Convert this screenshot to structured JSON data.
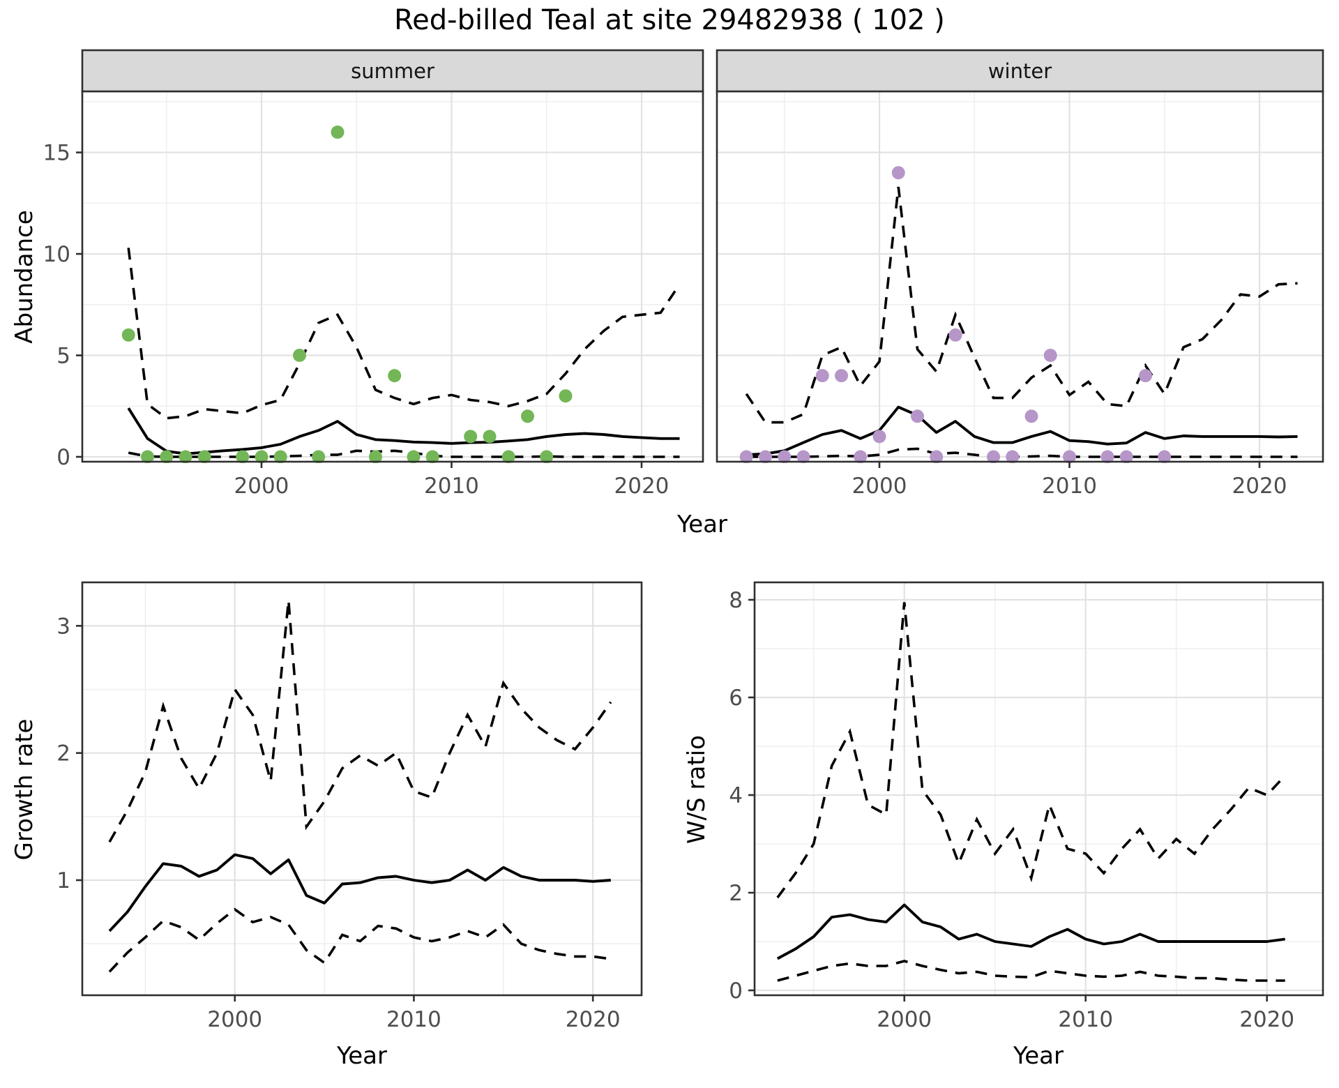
{
  "title": "Red-billed Teal at site 29482938 ( 102 )",
  "facets": {
    "summer": "summer",
    "winter": "winter"
  },
  "axis_labels": {
    "abundance": "Abundance",
    "year_top": "Year",
    "growth_rate": "Growth rate",
    "ws_ratio": "W/S ratio",
    "year_bottom_left": "Year",
    "year_bottom_right": "Year"
  },
  "colors": {
    "summer_points": "#73b657",
    "winter_points": "#b696c9",
    "line": "#000000",
    "strip_bg": "#d9d9d9",
    "panel_border": "#2f2f2f",
    "grid_major": "#e2e2e2",
    "grid_minor": "#efefef",
    "tick_text": "#4d4d4d"
  },
  "chart_data": {
    "type": "line",
    "title": "Red-billed Teal at site 29482938 ( 102 )",
    "legend": "none",
    "panels": [
      {
        "id": "summer",
        "facet_label": "summer",
        "ylabel": "Abundance",
        "xlim": [
          1990.57,
          2023.23
        ],
        "ylim": [
          -0.24,
          18.01
        ],
        "x_major": [
          2000,
          2010,
          2020
        ],
        "x_minor": [
          1995,
          2005,
          2015
        ],
        "x_tick_labels": [
          "2000",
          "2010",
          "2020"
        ],
        "y_major": [
          0,
          5,
          10,
          15
        ],
        "y_minor": [
          2.5,
          7.5,
          12.5,
          17.5
        ],
        "y_tick_labels": [
          "0",
          "5",
          "10",
          "15"
        ],
        "point_color": "#73b657",
        "points": {
          "years": [
            1993,
            1994,
            1995,
            1996,
            1997,
            1999,
            2000,
            2001,
            2002,
            2003,
            2004,
            2006,
            2007,
            2008,
            2009,
            2011,
            2012,
            2013,
            2014,
            2015,
            2016
          ],
          "values": [
            6,
            0,
            0,
            0,
            0,
            0,
            0,
            0,
            5,
            0,
            16,
            0,
            4,
            0,
            0,
            1,
            1,
            0,
            2,
            0,
            3
          ]
        },
        "median": {
          "years": [
            1993,
            1994,
            1995,
            1996,
            1997,
            1998,
            1999,
            2000,
            2001,
            2002,
            2003,
            2004,
            2005,
            2006,
            2007,
            2008,
            2009,
            2010,
            2011,
            2012,
            2013,
            2014,
            2015,
            2016,
            2017,
            2018,
            2019,
            2020,
            2021,
            2022
          ],
          "values": [
            2.4,
            0.9,
            0.28,
            0.15,
            0.22,
            0.3,
            0.36,
            0.45,
            0.62,
            1.0,
            1.3,
            1.75,
            1.1,
            0.85,
            0.8,
            0.73,
            0.7,
            0.66,
            0.7,
            0.72,
            0.78,
            0.85,
            1.0,
            1.1,
            1.15,
            1.1,
            1.0,
            0.95,
            0.9,
            0.9
          ]
        },
        "upper": {
          "years": [
            1993,
            1994,
            1995,
            1996,
            1997,
            1998,
            1999,
            2000,
            2001,
            2002,
            2003,
            2004,
            2005,
            2006,
            2007,
            2008,
            2009,
            2010,
            2011,
            2012,
            2013,
            2014,
            2015,
            2016,
            2017,
            2018,
            2019,
            2020,
            2021,
            2022
          ],
          "values": [
            10.3,
            2.6,
            1.9,
            2.0,
            2.35,
            2.25,
            2.15,
            2.55,
            2.8,
            4.6,
            6.6,
            7.0,
            5.4,
            3.3,
            2.9,
            2.6,
            2.9,
            3.05,
            2.8,
            2.7,
            2.5,
            2.75,
            3.1,
            4.1,
            5.3,
            6.2,
            6.9,
            7.0,
            7.1,
            8.5
          ]
        },
        "lower": {
          "years": [
            1993,
            1994,
            1995,
            1996,
            1997,
            1998,
            1999,
            2000,
            2001,
            2002,
            2003,
            2004,
            2005,
            2006,
            2007,
            2008,
            2009,
            2010,
            2011,
            2012,
            2013,
            2014,
            2015,
            2016,
            2017,
            2018,
            2019,
            2020,
            2021,
            2022
          ],
          "values": [
            0.2,
            0.02,
            0,
            0,
            0,
            0,
            0,
            0,
            0.02,
            0.05,
            0.1,
            0.1,
            0.3,
            0.25,
            0.3,
            0.2,
            0.05,
            0,
            0,
            0,
            0,
            0,
            0.02,
            0,
            0,
            0,
            0,
            0,
            0,
            0
          ]
        }
      },
      {
        "id": "winter",
        "facet_label": "winter",
        "ylabel": "",
        "xlim": [
          1991.45,
          2023.34
        ],
        "ylim": [
          -0.24,
          18.01
        ],
        "x_major": [
          2000,
          2010,
          2020
        ],
        "x_minor": [
          1995,
          2005,
          2015
        ],
        "x_tick_labels": [
          "2000",
          "2010",
          "2020"
        ],
        "y_major": [
          0,
          5,
          10,
          15
        ],
        "y_minor": [
          2.5,
          7.5,
          12.5,
          17.5
        ],
        "y_tick_labels": [
          "0",
          "5",
          "10",
          "15"
        ],
        "point_color": "#b696c9",
        "points": {
          "years": [
            1993,
            1994,
            1995,
            1996,
            1997,
            1998,
            1999,
            2000,
            2001,
            2002,
            2003,
            2004,
            2006,
            2007,
            2008,
            2009,
            2010,
            2012,
            2013,
            2014,
            2015
          ],
          "values": [
            0,
            0,
            0,
            0,
            4,
            4,
            0,
            1,
            14,
            2,
            0,
            6,
            0,
            0,
            2,
            5,
            0,
            0,
            0,
            4,
            0
          ]
        },
        "median": {
          "years": [
            1993,
            1994,
            1995,
            1996,
            1997,
            1998,
            1999,
            2000,
            2001,
            2002,
            2003,
            2004,
            2005,
            2006,
            2007,
            2008,
            2009,
            2010,
            2011,
            2012,
            2013,
            2014,
            2015,
            2016,
            2017,
            2018,
            2019,
            2020,
            2021,
            2022
          ],
          "values": [
            0.1,
            0.15,
            0.3,
            0.7,
            1.1,
            1.3,
            0.9,
            1.3,
            2.45,
            2.05,
            1.2,
            1.75,
            1.0,
            0.7,
            0.7,
            1.0,
            1.25,
            0.8,
            0.75,
            0.63,
            0.68,
            1.2,
            0.9,
            1.03,
            1.0,
            1.0,
            1.0,
            1.0,
            0.98,
            1.0
          ]
        },
        "upper": {
          "years": [
            1993,
            1994,
            1995,
            1996,
            1997,
            1998,
            1999,
            2000,
            2001,
            2002,
            2003,
            2004,
            2005,
            2006,
            2007,
            2008,
            2009,
            2010,
            2011,
            2012,
            2013,
            2014,
            2015,
            2016,
            2017,
            2018,
            2019,
            2020,
            2021,
            2022
          ],
          "values": [
            3.1,
            1.7,
            1.7,
            2.1,
            5.0,
            5.4,
            3.5,
            4.7,
            13.3,
            5.3,
            4.2,
            7.0,
            4.9,
            2.9,
            2.9,
            3.9,
            4.5,
            3.05,
            3.7,
            2.6,
            2.5,
            4.5,
            3.1,
            5.4,
            5.8,
            6.75,
            8.0,
            7.9,
            8.5,
            8.55
          ]
        },
        "lower": {
          "years": [
            1993,
            1994,
            1995,
            1996,
            1997,
            1998,
            1999,
            2000,
            2001,
            2002,
            2003,
            2004,
            2005,
            2006,
            2007,
            2008,
            2009,
            2010,
            2011,
            2012,
            2013,
            2014,
            2015,
            2016,
            2017,
            2018,
            2019,
            2020,
            2021,
            2022
          ],
          "values": [
            0,
            0,
            0,
            0,
            0.02,
            0.05,
            0.02,
            0.1,
            0.35,
            0.4,
            0.15,
            0.2,
            0.1,
            0,
            0,
            0.02,
            0.05,
            0,
            0,
            0,
            0,
            0,
            0,
            0,
            0,
            0,
            0,
            0,
            0,
            0
          ]
        }
      },
      {
        "id": "growth",
        "facet_label": "",
        "ylabel": "Growth rate",
        "xlim": [
          1991.48,
          2022.72
        ],
        "ylim": [
          0.095,
          3.342
        ],
        "x_major": [
          2000,
          2010,
          2020
        ],
        "x_minor": [
          1995,
          2005,
          2015
        ],
        "x_tick_labels": [
          "2000",
          "2010",
          "2020"
        ],
        "y_major": [
          1,
          2,
          3
        ],
        "y_minor": [
          0.5,
          1.5,
          2.5
        ],
        "y_tick_labels": [
          "1",
          "2",
          "3"
        ],
        "median": {
          "years": [
            1993,
            1994,
            1995,
            1996,
            1997,
            1998,
            1999,
            2000,
            2001,
            2002,
            2003,
            2004,
            2005,
            2006,
            2007,
            2008,
            2009,
            2010,
            2011,
            2012,
            2013,
            2014,
            2015,
            2016,
            2017,
            2018,
            2019,
            2020,
            2021
          ],
          "values": [
            0.6,
            0.75,
            0.95,
            1.13,
            1.11,
            1.03,
            1.08,
            1.2,
            1.17,
            1.05,
            1.16,
            0.88,
            0.82,
            0.97,
            0.98,
            1.02,
            1.03,
            1.0,
            0.98,
            1.0,
            1.08,
            1.0,
            1.1,
            1.03,
            1.0,
            1.0,
            1.0,
            0.99,
            1.0
          ]
        },
        "upper": {
          "years": [
            1993,
            1994,
            1995,
            1996,
            1997,
            1998,
            1999,
            2000,
            2001,
            2002,
            2003,
            2004,
            2005,
            2006,
            2007,
            2008,
            2009,
            2010,
            2011,
            2012,
            2013,
            2014,
            2015,
            2016,
            2017,
            2018,
            2019,
            2020,
            2021
          ],
          "values": [
            1.3,
            1.55,
            1.85,
            2.37,
            1.96,
            1.72,
            2.0,
            2.5,
            2.3,
            1.78,
            3.2,
            1.42,
            1.62,
            1.88,
            1.98,
            1.9,
            2.0,
            1.7,
            1.65,
            2.0,
            2.3,
            2.05,
            2.55,
            2.35,
            2.2,
            2.1,
            2.03,
            2.2,
            2.4
          ]
        },
        "lower": {
          "years": [
            1993,
            1994,
            1995,
            1996,
            1997,
            1998,
            1999,
            2000,
            2001,
            2002,
            2003,
            2004,
            2005,
            2006,
            2007,
            2008,
            2009,
            2010,
            2011,
            2012,
            2013,
            2014,
            2015,
            2016,
            2017,
            2018,
            2019,
            2020,
            2021
          ],
          "values": [
            0.28,
            0.43,
            0.55,
            0.68,
            0.63,
            0.53,
            0.66,
            0.77,
            0.67,
            0.71,
            0.65,
            0.45,
            0.35,
            0.57,
            0.52,
            0.64,
            0.62,
            0.55,
            0.52,
            0.55,
            0.6,
            0.55,
            0.65,
            0.5,
            0.45,
            0.42,
            0.4,
            0.4,
            0.38
          ]
        }
      },
      {
        "id": "ws",
        "facet_label": "",
        "ylabel": "W/S ratio",
        "xlim": [
          1991.74,
          2023.09
        ],
        "ylim": [
          -0.1,
          8.357
        ],
        "x_major": [
          2000,
          2010,
          2020
        ],
        "x_minor": [
          1995,
          2005,
          2015
        ],
        "x_tick_labels": [
          "2000",
          "2010",
          "2020"
        ],
        "y_major": [
          0,
          2,
          4,
          6,
          8
        ],
        "y_minor": [
          1,
          3,
          5,
          7
        ],
        "y_tick_labels": [
          "0",
          "2",
          "4",
          "6",
          "8"
        ],
        "median": {
          "years": [
            1993,
            1994,
            1995,
            1996,
            1997,
            1998,
            1999,
            2000,
            2001,
            2002,
            2003,
            2004,
            2005,
            2006,
            2007,
            2008,
            2009,
            2010,
            2011,
            2012,
            2013,
            2014,
            2015,
            2016,
            2017,
            2018,
            2019,
            2020,
            2021
          ],
          "values": [
            0.65,
            0.85,
            1.1,
            1.5,
            1.55,
            1.45,
            1.4,
            1.75,
            1.4,
            1.3,
            1.05,
            1.15,
            1.0,
            0.95,
            0.9,
            1.1,
            1.25,
            1.05,
            0.95,
            1.0,
            1.15,
            1.0,
            1.0,
            1.0,
            1.0,
            1.0,
            1.0,
            1.0,
            1.05
          ]
        },
        "upper": {
          "years": [
            1993,
            1994,
            1995,
            1996,
            1997,
            1998,
            1999,
            2000,
            2001,
            2002,
            2003,
            2004,
            2005,
            2006,
            2007,
            2008,
            2009,
            2010,
            2011,
            2012,
            2013,
            2014,
            2015,
            2016,
            2017,
            2018,
            2019,
            2020,
            2021
          ],
          "values": [
            1.9,
            2.4,
            3.0,
            4.6,
            5.3,
            3.8,
            3.6,
            7.95,
            4.1,
            3.6,
            2.6,
            3.5,
            2.8,
            3.3,
            2.3,
            3.8,
            2.9,
            2.8,
            2.4,
            2.9,
            3.3,
            2.7,
            3.1,
            2.8,
            3.3,
            3.7,
            4.15,
            4.0,
            4.4
          ]
        },
        "lower": {
          "years": [
            1993,
            1994,
            1995,
            1996,
            1997,
            1998,
            1999,
            2000,
            2001,
            2002,
            2003,
            2004,
            2005,
            2006,
            2007,
            2008,
            2009,
            2010,
            2011,
            2012,
            2013,
            2014,
            2015,
            2016,
            2017,
            2018,
            2019,
            2020,
            2021
          ],
          "values": [
            0.2,
            0.3,
            0.4,
            0.5,
            0.55,
            0.5,
            0.5,
            0.6,
            0.5,
            0.42,
            0.35,
            0.38,
            0.3,
            0.28,
            0.27,
            0.4,
            0.35,
            0.3,
            0.28,
            0.3,
            0.38,
            0.3,
            0.28,
            0.25,
            0.25,
            0.22,
            0.2,
            0.2,
            0.2
          ]
        }
      }
    ]
  }
}
